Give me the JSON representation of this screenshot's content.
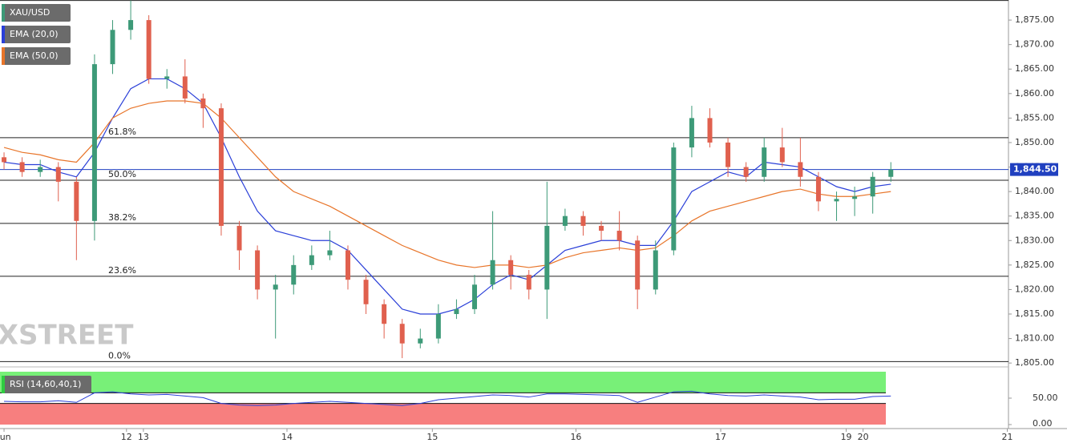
{
  "chart_data": [
    {
      "type": "candlestick",
      "watermark": "FXSTREET",
      "x": [
        0,
        3,
        6,
        9,
        12,
        15,
        18,
        21,
        24,
        27,
        30,
        33,
        36,
        39,
        42,
        45,
        48,
        51,
        54,
        57,
        60,
        63,
        66,
        69,
        72,
        75,
        78,
        81,
        84,
        87,
        90,
        93,
        96,
        99,
        102,
        105,
        108,
        111,
        114,
        117,
        120,
        123,
        126,
        129,
        132,
        135,
        138,
        141,
        144,
        147
      ],
      "xlim": [
        -0.67,
        166.5
      ],
      "xticks": [
        {
          "value": 0,
          "label": "Jun"
        },
        {
          "value": 20.3,
          "label": "12"
        },
        {
          "value": 23.1,
          "label": "13"
        },
        {
          "value": 46.9,
          "label": "14"
        },
        {
          "value": 71,
          "label": "15"
        },
        {
          "value": 94.8,
          "label": "16"
        },
        {
          "value": 118.8,
          "label": "17"
        },
        {
          "value": 139.6,
          "label": "19"
        },
        {
          "value": 142.4,
          "label": "20"
        },
        {
          "value": 166.3,
          "label": "21"
        }
      ],
      "ylim": [
        1804.7,
        1879.1
      ],
      "yticks": [
        {
          "value": 1805,
          "label": "1,805.00"
        },
        {
          "value": 1810,
          "label": "1,810.00"
        },
        {
          "value": 1815,
          "label": "1,815.00"
        },
        {
          "value": 1820,
          "label": "1,820.00"
        },
        {
          "value": 1825,
          "label": "1,825.00"
        },
        {
          "value": 1830,
          "label": "1,830.00"
        },
        {
          "value": 1835,
          "label": "1,835.00"
        },
        {
          "value": 1840,
          "label": "1,840.00"
        },
        {
          "value": 1845,
          "label": "1,845.00"
        },
        {
          "value": 1850,
          "label": "1,850.00"
        },
        {
          "value": 1855,
          "label": "1,855.00"
        },
        {
          "value": 1860,
          "label": "1,860.00"
        },
        {
          "value": 1865,
          "label": "1,865.00"
        },
        {
          "value": 1870,
          "label": "1,870.00"
        },
        {
          "value": 1875,
          "label": "1,875.00"
        }
      ],
      "last_price": {
        "value": 1844.5,
        "label": "1,844.50",
        "color": "#2040c0"
      },
      "fib_levels": [
        {
          "value": 1879,
          "label": null
        },
        {
          "value": 1851,
          "label": "61.8%"
        },
        {
          "value": 1842.3,
          "label": "50.0%"
        },
        {
          "value": 1833.5,
          "label": "38.2%"
        },
        {
          "value": 1822.7,
          "label": "23.6%"
        },
        {
          "value": 1805.3,
          "label": "0.0%"
        }
      ],
      "candles": {
        "name": "XAU/USD",
        "up_color": "#3d9a78",
        "down_color": "#e0604e",
        "open": [
          1847,
          1846,
          1844,
          1845,
          1842,
          1834,
          1866,
          1873,
          1875,
          1863,
          1863.5,
          1859,
          1857,
          1833,
          1828,
          1820,
          1821,
          1825,
          1827,
          1828,
          1822,
          1817,
          1813,
          1809,
          1810,
          1815,
          1816,
          1821,
          1826,
          1823,
          1820,
          1833,
          1835,
          1833,
          1832,
          1830,
          1820,
          1828,
          1849,
          1855,
          1850,
          1845,
          1843,
          1849,
          1846,
          1843,
          1838,
          1838.5,
          1839,
          1843
        ],
        "high": [
          1848,
          1847,
          1846.5,
          1846,
          1843,
          1868,
          1875,
          1879,
          1876,
          1865,
          1867,
          1860,
          1858,
          1834,
          1829,
          1823,
          1827,
          1829,
          1832,
          1829,
          1823,
          1818,
          1814,
          1812,
          1817,
          1818,
          1823,
          1836,
          1827,
          1824,
          1842,
          1836.5,
          1836,
          1834,
          1836,
          1831,
          1830,
          1850,
          1857.5,
          1857,
          1851,
          1846,
          1851,
          1853,
          1851,
          1844,
          1840,
          1841,
          1844,
          1846
        ],
        "low": [
          1844.5,
          1843,
          1843,
          1838,
          1826,
          1830,
          1864,
          1871,
          1862,
          1861,
          1858,
          1853,
          1831,
          1824,
          1818,
          1810,
          1819,
          1824,
          1826,
          1820,
          1815,
          1810,
          1806,
          1808,
          1809,
          1814,
          1815,
          1820,
          1820,
          1818,
          1814,
          1832,
          1831,
          1830,
          1828,
          1816,
          1819,
          1827,
          1847,
          1849,
          1843,
          1842,
          1842,
          1845,
          1841,
          1836,
          1834,
          1835,
          1835.5,
          1842
        ],
        "close": [
          1846,
          1844,
          1845,
          1842,
          1834,
          1866,
          1873,
          1875,
          1863,
          1863.5,
          1859,
          1857,
          1833,
          1828,
          1820,
          1821,
          1825,
          1827,
          1828,
          1822,
          1817,
          1813,
          1809,
          1810,
          1815,
          1816,
          1821,
          1826,
          1823,
          1820,
          1833,
          1835,
          1833,
          1832,
          1830,
          1820,
          1828,
          1849,
          1855,
          1850,
          1845,
          1843,
          1849,
          1846,
          1843,
          1838,
          1838.5,
          1839,
          1843,
          1844.5
        ]
      },
      "series": [
        {
          "name": "EMA (20,0)",
          "color": "#2a3fd8",
          "values": [
            1846,
            1845.5,
            1845.5,
            1844,
            1843,
            1848,
            1855,
            1861,
            1863,
            1863,
            1861,
            1858,
            1851,
            1843,
            1836,
            1832,
            1831,
            1830,
            1830,
            1828,
            1824,
            1820,
            1816,
            1815,
            1815,
            1816,
            1818,
            1821,
            1823,
            1822,
            1825,
            1828,
            1829,
            1830,
            1830,
            1829,
            1829,
            1834,
            1840,
            1842,
            1844,
            1843,
            1846,
            1845.5,
            1845,
            1843,
            1841,
            1840,
            1841,
            1841.5
          ]
        },
        {
          "name": "EMA (50,0)",
          "color": "#e8752a",
          "values": [
            1849,
            1848,
            1847.5,
            1846.5,
            1846,
            1850,
            1855,
            1857,
            1858,
            1858.5,
            1858.5,
            1858,
            1855,
            1851,
            1847,
            1843,
            1840,
            1838.5,
            1837,
            1835,
            1833,
            1831,
            1829,
            1827.5,
            1826,
            1825,
            1824.5,
            1825,
            1825,
            1824.5,
            1825,
            1826.5,
            1827.5,
            1828,
            1828.5,
            1828,
            1828.5,
            1831,
            1834,
            1836,
            1837,
            1838,
            1839,
            1840,
            1840.5,
            1839.5,
            1839,
            1839,
            1839.5,
            1840
          ]
        }
      ]
    },
    {
      "type": "rsi",
      "title": "RSI (14,60,40,1)",
      "upper": 60,
      "lower": 40,
      "upper_color": "#78f078",
      "lower_color": "#f77f7f",
      "ylim": [
        0,
        100
      ],
      "yticks": [
        {
          "value": 0,
          "label": "0.00"
        },
        {
          "value": 50,
          "label": "50.00"
        }
      ],
      "series": [
        {
          "name": "RSI",
          "color": "#2a3fd8",
          "values": [
            44,
            43,
            43,
            45,
            42,
            60,
            62,
            58,
            56,
            57,
            54,
            51,
            40,
            37,
            36,
            37,
            40,
            42,
            44,
            42,
            40,
            38,
            36,
            40,
            47,
            50,
            53,
            56,
            55,
            52,
            58,
            58,
            57,
            56,
            55,
            42,
            52,
            62,
            63,
            58,
            55,
            54,
            56,
            54,
            52,
            47,
            48,
            48,
            53,
            54
          ]
        }
      ]
    }
  ]
}
